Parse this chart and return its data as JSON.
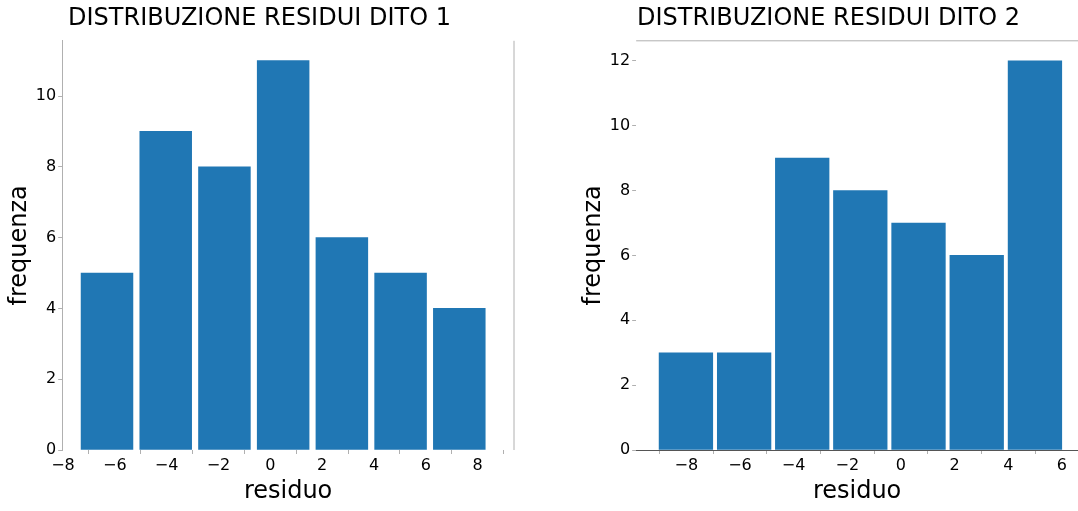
{
  "chart_data": [
    {
      "type": "histogram",
      "title": "DISTRIBUZIONE RESIDUI DITO 1",
      "xlabel": "residuo",
      "ylabel": "frequenza",
      "color": "#2077b4",
      "bins": [
        -7.43,
        -5.17,
        -2.9,
        -0.64,
        1.63,
        3.89,
        6.16,
        8.42
      ],
      "values": [
        5,
        9,
        8,
        11,
        6,
        5,
        4
      ],
      "xlim": [
        -8.03,
        9.4
      ],
      "xticks": [
        -8,
        -6,
        -4,
        -2,
        0,
        2,
        4,
        6,
        8
      ],
      "ylim": [
        0,
        11.56
      ],
      "yticks": [
        0,
        2,
        4,
        6,
        8,
        10
      ],
      "grid": false,
      "legend": false
    },
    {
      "type": "histogram",
      "title": "DISTRIBUZIONE RESIDUI DITO 2",
      "xlabel": "residuo",
      "ylabel": "frequenza",
      "color": "#2077b4",
      "bins": [
        -9.1,
        -6.93,
        -4.76,
        -2.6,
        -0.43,
        1.74,
        3.91,
        6.08
      ],
      "values": [
        3,
        3,
        9,
        8,
        7,
        6,
        12
      ],
      "xlim": [
        -9.87,
        6.6
      ],
      "xticks": [
        -8,
        -6,
        -4,
        -2,
        0,
        2,
        4,
        6
      ],
      "ylim": [
        0,
        12.62
      ],
      "yticks": [
        0,
        2,
        4,
        6,
        8,
        10,
        12
      ],
      "grid": false,
      "legend": false
    }
  ]
}
